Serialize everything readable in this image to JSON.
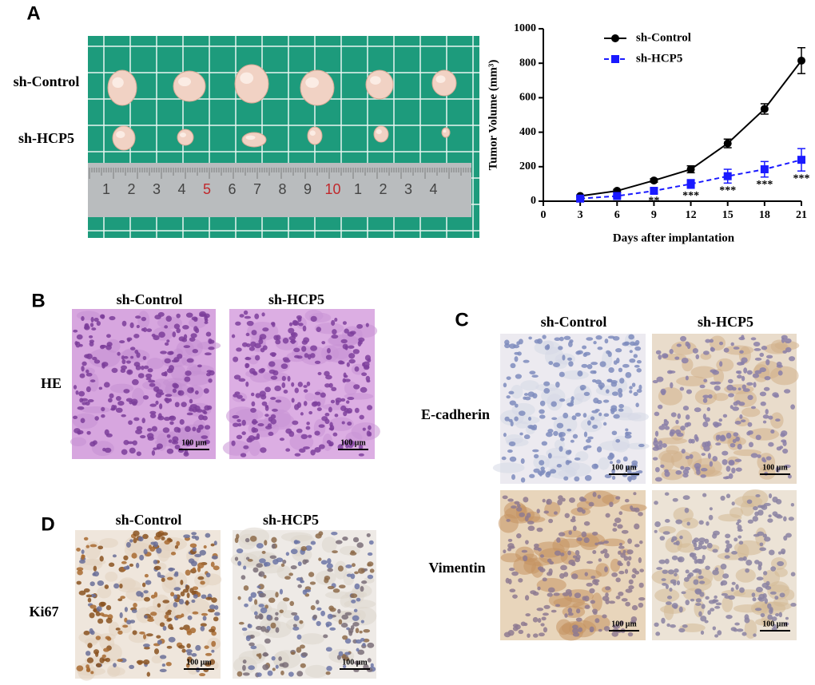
{
  "panels": {
    "A": {
      "label": "A",
      "row_labels": [
        "sh-Control",
        "sh-HCP5"
      ],
      "ruler_numbers": [
        "1",
        "2",
        "3",
        "4",
        "5",
        "6",
        "7",
        "8",
        "9",
        "10",
        "1",
        "2",
        "3",
        "4"
      ]
    },
    "B": {
      "label": "B",
      "columns": [
        "sh-Control",
        "sh-HCP5"
      ],
      "rows": [
        "HE"
      ]
    },
    "C": {
      "label": "C",
      "columns": [
        "sh-Control",
        "sh-HCP5"
      ],
      "rows": [
        "E-cadherin",
        "Vimentin"
      ]
    },
    "D": {
      "label": "D",
      "columns": [
        "sh-Control",
        "sh-HCP5"
      ],
      "rows": [
        "Ki67"
      ]
    }
  },
  "scale_bar": "100 μm",
  "chart_data": {
    "type": "line",
    "y_label": "Tumor Volume (mm³)",
    "x_label": "Days after implantation",
    "x": [
      3,
      6,
      9,
      12,
      15,
      18,
      21
    ],
    "xlim": [
      0,
      21
    ],
    "xticks": [
      0,
      3,
      6,
      9,
      12,
      15,
      18,
      21
    ],
    "ylim": [
      0,
      1000
    ],
    "yticks": [
      0,
      200,
      400,
      600,
      800,
      1000
    ],
    "series": [
      {
        "name": "sh-Control",
        "color": "#000000",
        "line_style": "solid",
        "marker": "circle",
        "values": [
          30,
          60,
          120,
          185,
          335,
          535,
          815
        ],
        "errors": [
          5,
          8,
          10,
          20,
          25,
          30,
          75
        ]
      },
      {
        "name": "sh-HCP5",
        "color": "#1a1aff",
        "line_style": "dashed",
        "marker": "square",
        "values": [
          15,
          30,
          60,
          100,
          145,
          185,
          240
        ],
        "errors": [
          5,
          8,
          15,
          25,
          40,
          45,
          65
        ]
      }
    ],
    "annotations": [
      {
        "x": 9,
        "text": "**"
      },
      {
        "x": 12,
        "text": "***"
      },
      {
        "x": 15,
        "text": "***"
      },
      {
        "x": 18,
        "text": "***"
      },
      {
        "x": 21,
        "text": "***"
      }
    ]
  }
}
